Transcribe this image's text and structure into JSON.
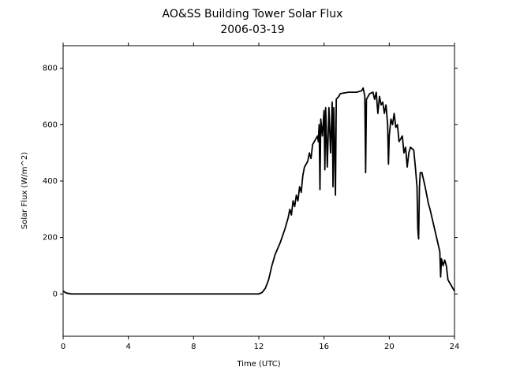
{
  "chart_data": {
    "type": "line",
    "title": "AO&SS Building Tower Solar Flux",
    "subtitle": "2006-03-19",
    "x_label": "Time (UTC)",
    "y_label": "Solar Flux (W/m^2)",
    "color": "#000000",
    "x": [
      0,
      0.2,
      0.5,
      2,
      4,
      6,
      8,
      10,
      12,
      12.2,
      12.4,
      12.6,
      12.8,
      13,
      13.3,
      13.6,
      13.8,
      13.9,
      14.0,
      14.1,
      14.2,
      14.3,
      14.4,
      14.5,
      14.6,
      14.7,
      14.8,
      15.0,
      15.1,
      15.2,
      15.3,
      15.5,
      15.6,
      15.65,
      15.7,
      15.75,
      15.8,
      15.9,
      16.0,
      16.05,
      16.1,
      16.2,
      16.3,
      16.4,
      16.5,
      16.55,
      16.6,
      16.7,
      16.75,
      16.9,
      17.0,
      17.5,
      18.0,
      18.3,
      18.4,
      18.5,
      18.55,
      18.6,
      18.8,
      19.0,
      19.1,
      19.2,
      19.3,
      19.4,
      19.5,
      19.6,
      19.7,
      19.8,
      19.9,
      19.95,
      20.0,
      20.1,
      20.2,
      20.3,
      20.4,
      20.5,
      20.6,
      20.8,
      20.9,
      21.0,
      21.1,
      21.2,
      21.3,
      21.5,
      21.6,
      21.7,
      21.75,
      21.8,
      21.85,
      21.9,
      22.0,
      22.2,
      22.4,
      22.5,
      22.7,
      22.9,
      23.1,
      23.15,
      23.2,
      23.3,
      23.4,
      23.5,
      23.6,
      23.8,
      24
    ],
    "values": [
      10,
      3,
      0,
      0,
      0,
      0,
      0,
      0,
      0,
      5,
      20,
      50,
      100,
      140,
      180,
      230,
      270,
      300,
      280,
      330,
      310,
      350,
      330,
      380,
      360,
      420,
      450,
      470,
      500,
      480,
      530,
      550,
      560,
      540,
      600,
      370,
      620,
      560,
      650,
      440,
      660,
      450,
      660,
      500,
      680,
      380,
      660,
      350,
      690,
      700,
      710,
      715,
      715,
      720,
      730,
      700,
      430,
      690,
      710,
      715,
      690,
      715,
      640,
      700,
      670,
      680,
      640,
      670,
      600,
      460,
      560,
      620,
      600,
      640,
      590,
      600,
      540,
      560,
      500,
      520,
      450,
      500,
      520,
      510,
      450,
      380,
      230,
      195,
      380,
      430,
      430,
      380,
      320,
      300,
      250,
      200,
      150,
      60,
      125,
      100,
      120,
      100,
      50,
      30,
      10
    ],
    "xlim": [
      0,
      24
    ],
    "xticks": [
      0,
      4,
      8,
      12,
      16,
      20,
      24
    ],
    "ylim": [
      -150,
      880
    ],
    "yticks": [
      0,
      200,
      400,
      600,
      800
    ]
  }
}
